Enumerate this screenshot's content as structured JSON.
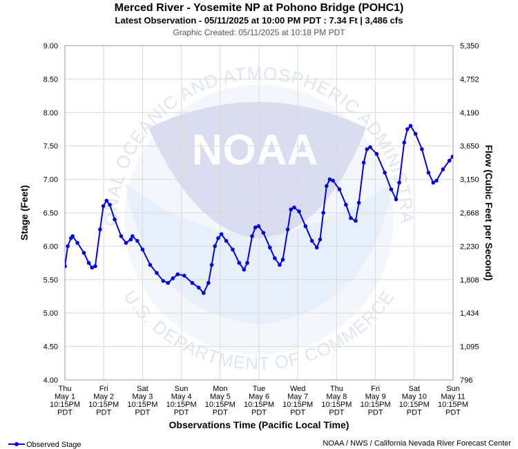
{
  "chart_data": {
    "type": "line",
    "title": "Merced River - Yosemite NP at Pohono Bridge (POHC1)",
    "subtitle": "Latest Observation - 05/11/2025 at 10:00 PM PDT : 7.34 Ft | 3,486 cfs",
    "created": "Graphic Created: 05/11/2025 at 10:18 PM PDT",
    "ylabel": "Stage (Feet)",
    "y2label": "Flow (Cubic Feet per Second)",
    "xlabel": "Observations Time (Pacific Local Time)",
    "ylim": [
      4.0,
      9.0
    ],
    "y_ticks": [
      "4.00",
      "4.50",
      "5.00",
      "5.50",
      "6.00",
      "6.50",
      "7.00",
      "7.50",
      "8.00",
      "8.50",
      "9.00"
    ],
    "y2_ticks": [
      "796",
      "1,095",
      "1,434",
      "1,808",
      "2,230",
      "2,668",
      "3,150",
      "3,650",
      "4,190",
      "4,752",
      "5,350"
    ],
    "x_ticks": [
      {
        "day": "Thu",
        "date": "May 1",
        "time": "10:15PM",
        "tz": "PDT"
      },
      {
        "day": "Fri",
        "date": "May 2",
        "time": "10:15PM",
        "tz": "PDT"
      },
      {
        "day": "Sat",
        "date": "May 3",
        "time": "10:15PM",
        "tz": "PDT"
      },
      {
        "day": "Sun",
        "date": "May 4",
        "time": "10:15PM",
        "tz": "PDT"
      },
      {
        "day": "Mon",
        "date": "May 5",
        "time": "10:15PM",
        "tz": "PDT"
      },
      {
        "day": "Tue",
        "date": "May 6",
        "time": "10:15PM",
        "tz": "PDT"
      },
      {
        "day": "Wed",
        "date": "May 7",
        "time": "10:15PM",
        "tz": "PDT"
      },
      {
        "day": "Thu",
        "date": "May 8",
        "time": "10:15PM",
        "tz": "PDT"
      },
      {
        "day": "Fri",
        "date": "May 9",
        "time": "10:15PM",
        "tz": "PDT"
      },
      {
        "day": "Sat",
        "date": "May 10",
        "time": "10:15PM",
        "tz": "PDT"
      },
      {
        "day": "Sun",
        "date": "May 11",
        "time": "10:15PM",
        "tz": "PDT"
      }
    ],
    "grid": true,
    "legend_position": "bottom-left",
    "series": [
      {
        "name": "Observed Stage",
        "color": "#0000ee",
        "points": [
          [
            "05/01 22:15",
            5.7
          ],
          [
            "05/02 00:00",
            6.0
          ],
          [
            "05/02 02:00",
            6.12
          ],
          [
            "05/02 03:00",
            6.15
          ],
          [
            "05/02 06:00",
            6.05
          ],
          [
            "05/02 10:00",
            5.9
          ],
          [
            "05/02 13:00",
            5.75
          ],
          [
            "05/02 15:00",
            5.68
          ],
          [
            "05/02 17:00",
            5.7
          ],
          [
            "05/02 20:00",
            6.25
          ],
          [
            "05/02 22:00",
            6.6
          ],
          [
            "05/03 00:00",
            6.68
          ],
          [
            "05/03 02:00",
            6.62
          ],
          [
            "05/03 05:00",
            6.4
          ],
          [
            "05/03 09:00",
            6.15
          ],
          [
            "05/03 12:00",
            6.05
          ],
          [
            "05/03 15:00",
            6.1
          ],
          [
            "05/03 16:00",
            6.15
          ],
          [
            "05/03 19:00",
            6.08
          ],
          [
            "05/03 22:15",
            5.95
          ],
          [
            "05/04 03:00",
            5.72
          ],
          [
            "05/04 07:00",
            5.6
          ],
          [
            "05/04 11:00",
            5.48
          ],
          [
            "05/04 14:00",
            5.45
          ],
          [
            "05/04 17:00",
            5.52
          ],
          [
            "05/04 20:00",
            5.58
          ],
          [
            "05/05 00:00",
            5.56
          ],
          [
            "05/05 05:00",
            5.45
          ],
          [
            "05/05 09:00",
            5.38
          ],
          [
            "05/05 12:00",
            5.3
          ],
          [
            "05/05 15:00",
            5.45
          ],
          [
            "05/05 17:00",
            5.72
          ],
          [
            "05/05 19:00",
            6.0
          ],
          [
            "05/05 21:00",
            6.12
          ],
          [
            "05/05 23:00",
            6.18
          ],
          [
            "05/06 02:00",
            6.08
          ],
          [
            "05/06 06:00",
            5.95
          ],
          [
            "05/06 10:00",
            5.75
          ],
          [
            "05/06 13:00",
            5.65
          ],
          [
            "05/06 15:00",
            5.75
          ],
          [
            "05/06 18:00",
            6.15
          ],
          [
            "05/06 20:00",
            6.28
          ],
          [
            "05/06 22:00",
            6.3
          ],
          [
            "05/07 01:00",
            6.2
          ],
          [
            "05/07 05:00",
            5.98
          ],
          [
            "05/07 08:00",
            5.82
          ],
          [
            "05/07 11:00",
            5.72
          ],
          [
            "05/07 13:00",
            5.8
          ],
          [
            "05/07 16:00",
            6.25
          ],
          [
            "05/07 18:00",
            6.55
          ],
          [
            "05/07 20:00",
            6.58
          ],
          [
            "05/07 23:00",
            6.52
          ],
          [
            "05/08 03:00",
            6.3
          ],
          [
            "05/08 07:00",
            6.08
          ],
          [
            "05/08 10:00",
            5.98
          ],
          [
            "05/08 12:00",
            6.1
          ],
          [
            "05/08 14:00",
            6.5
          ],
          [
            "05/08 16:00",
            6.9
          ],
          [
            "05/08 18:00",
            7.0
          ],
          [
            "05/08 20:00",
            6.98
          ],
          [
            "05/09 00:00",
            6.85
          ],
          [
            "05/09 04:00",
            6.62
          ],
          [
            "05/09 07:00",
            6.42
          ],
          [
            "05/09 10:00",
            6.38
          ],
          [
            "05/09 12:00",
            6.65
          ],
          [
            "05/09 15:00",
            7.25
          ],
          [
            "05/09 17:00",
            7.45
          ],
          [
            "05/09 19:00",
            7.48
          ],
          [
            "05/09 23:00",
            7.38
          ],
          [
            "05/10 04:00",
            7.1
          ],
          [
            "05/10 08:00",
            6.85
          ],
          [
            "05/10 11:00",
            6.7
          ],
          [
            "05/10 13:00",
            6.95
          ],
          [
            "05/10 16:00",
            7.55
          ],
          [
            "05/10 18:00",
            7.75
          ],
          [
            "05/10 20:00",
            7.8
          ],
          [
            "05/10 23:00",
            7.68
          ],
          [
            "05/11 03:00",
            7.45
          ],
          [
            "05/11 07:00",
            7.1
          ],
          [
            "05/11 10:00",
            6.95
          ],
          [
            "05/11 12:00",
            6.98
          ],
          [
            "05/11 16:00",
            7.15
          ],
          [
            "05/11 20:00",
            7.28
          ],
          [
            "05/11 22:00",
            7.34
          ]
        ]
      }
    ]
  },
  "watermark": {
    "agency_text": "NATIONAL OCEANIC AND ATMOSPHERIC ADMINISTRATION",
    "department_text": "U.S. DEPARTMENT OF COMMERCE",
    "logo_text": "NOAA"
  },
  "legend": {
    "label": "Observed Stage"
  },
  "footer": {
    "credit": "NOAA / NWS / California Nevada River Forecast Center"
  }
}
